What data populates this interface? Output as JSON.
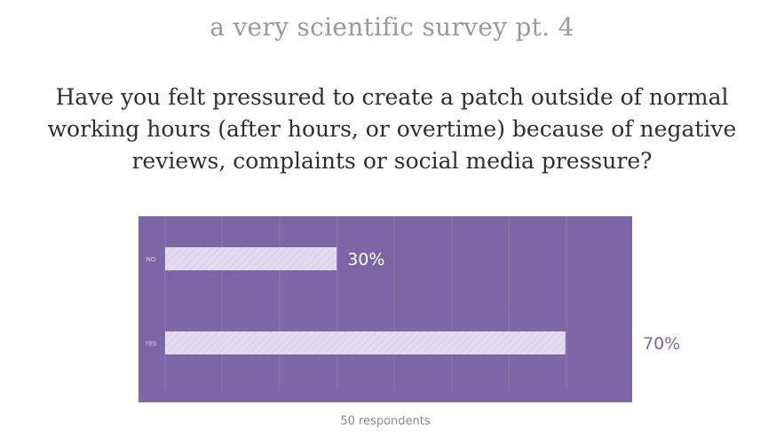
{
  "page": {
    "title": "a very scientific survey pt. 4",
    "question_lines": [
      "Have you felt pressured to create a patch outside of normal",
      "working hours (after hours, or overtime) because of negative",
      "reviews, complaints or social media pressure?"
    ],
    "respondents_label": "50 respondents"
  },
  "colors": {
    "panel": "#7d66a5",
    "bar": "#e3dcee",
    "gridline": "#8f7ab3",
    "label_inside": "#ffffff",
    "label_outside": "#7d66a5",
    "category_label": "#d9d0e8"
  },
  "chart_data": {
    "type": "bar",
    "orientation": "horizontal",
    "categories": [
      "NO",
      "YES"
    ],
    "values": [
      30,
      70
    ],
    "value_labels": [
      "30%",
      "70%"
    ],
    "unit": "%",
    "xlim": [
      0,
      100
    ],
    "grid": true,
    "title": "",
    "xlabel": "",
    "ylabel": ""
  }
}
